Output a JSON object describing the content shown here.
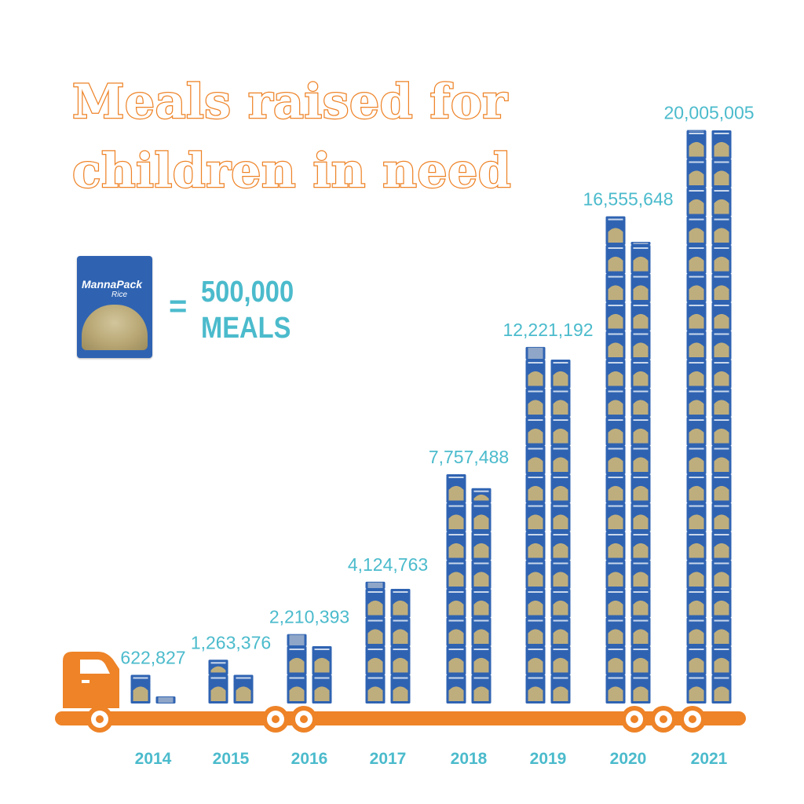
{
  "header": {
    "title_line1": "Meals raised for",
    "title_line2": "children in need"
  },
  "legend": {
    "pack_brand": "MannaPack",
    "pack_sub": "Rice",
    "equals": "=",
    "value": "500,000",
    "unit": "MEALS"
  },
  "colors": {
    "title": "#ee8327",
    "truck": "#ee8327",
    "labels": "#4bbbcc",
    "pack": "#2f63b2",
    "pack_food": "#bfae7d"
  },
  "icons": {
    "pack": "mannapack-rice-icon",
    "truck": "truck-icon",
    "wheel": "wheel-icon"
  },
  "chart_data": {
    "type": "bar",
    "categories": [
      "2014",
      "2015",
      "2016",
      "2017",
      "2018",
      "2019",
      "2020",
      "2021"
    ],
    "values": [
      622827,
      1263376,
      2210393,
      4124763,
      7757488,
      12221192,
      16555648,
      20005005
    ],
    "value_labels": [
      "622,827",
      "1,263,376",
      "2,210,393",
      "4,124,763",
      "7,757,488",
      "12,221,192",
      "16,555,648",
      "20,005,005"
    ],
    "unit_per_icon": 500000,
    "title": "Meals raised for children in need",
    "grid": false,
    "legend": "left"
  }
}
